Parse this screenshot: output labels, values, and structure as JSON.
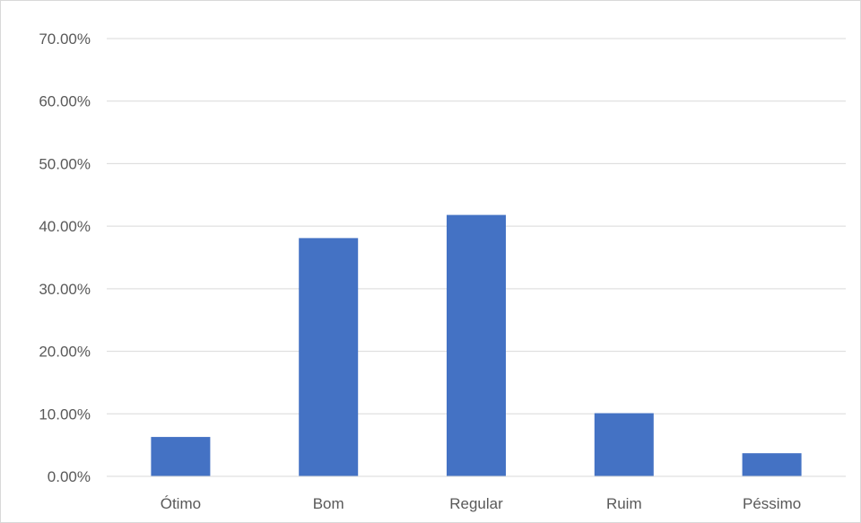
{
  "chart_data": {
    "type": "bar",
    "title": "",
    "xlabel": "",
    "ylabel": "",
    "categories": [
      "Ótimo",
      "Bom",
      "Regular",
      "Ruim",
      "Péssimo"
    ],
    "values": [
      6.3,
      38.1,
      41.8,
      10.1,
      3.7
    ],
    "ylim": [
      0,
      70
    ],
    "yticks": [
      0,
      10,
      20,
      30,
      40,
      50,
      60,
      70
    ],
    "ytick_labels": [
      "0.00%",
      "10.00%",
      "20.00%",
      "30.00%",
      "40.00%",
      "50.00%",
      "60.00%",
      "70.00%"
    ],
    "grid": true,
    "legend": "none",
    "colors": {
      "bar": "#4472c4",
      "grid": "#d9d9d9",
      "axis": "#d9d9d9",
      "text": "#595959"
    }
  }
}
